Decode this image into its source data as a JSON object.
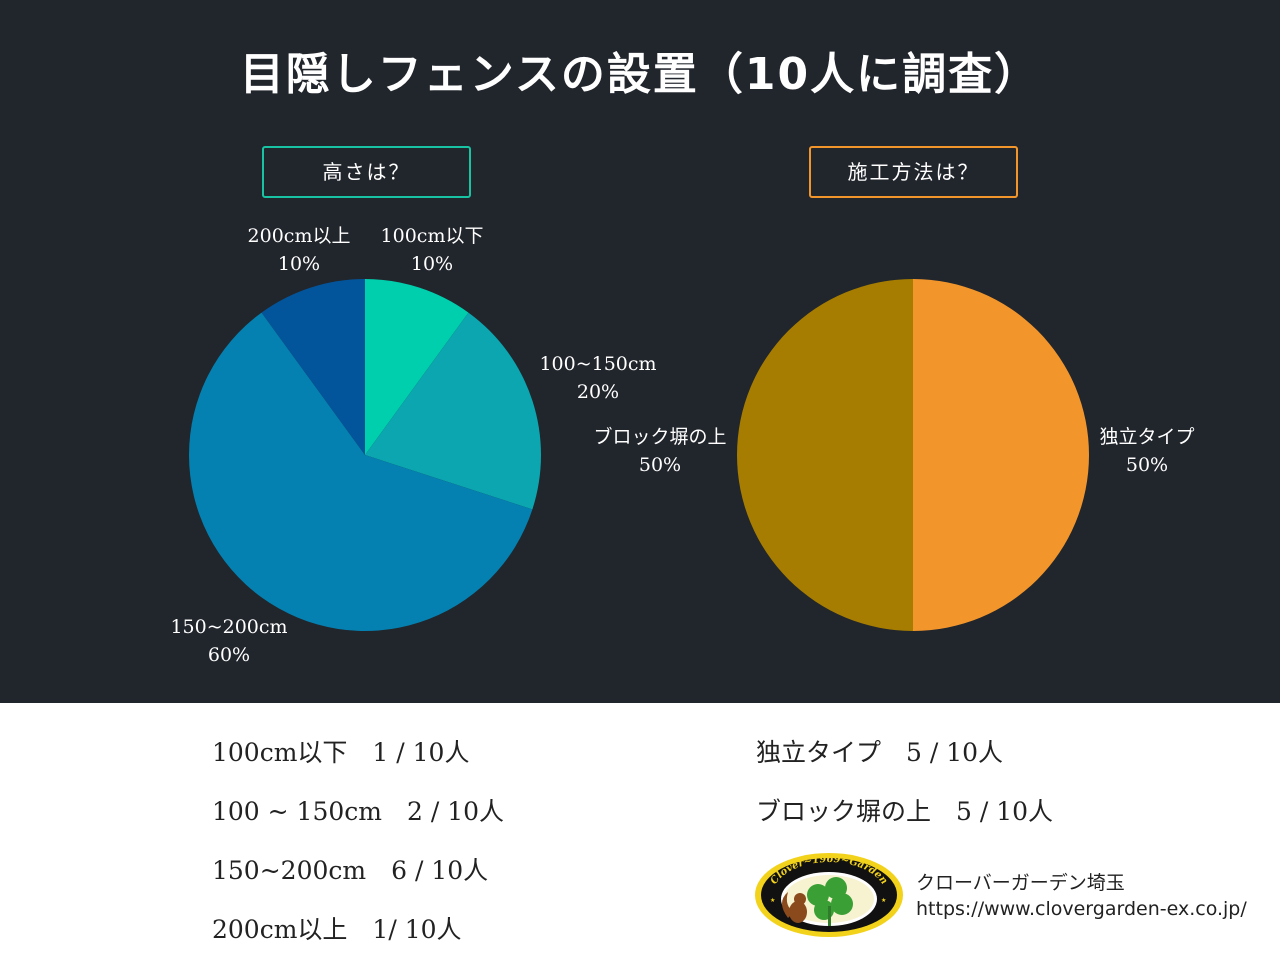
{
  "title": "目隠しフェンスの設置（10人に調査）",
  "question_height": "高さは？",
  "question_method": "施工方法は？",
  "chart_data": [
    {
      "type": "pie",
      "title": "高さは？",
      "slices": [
        {
          "label": "100cm以下",
          "value": 10,
          "value_label": "10%",
          "color": "#00cfad"
        },
        {
          "label": "100~150cm",
          "value": 20,
          "value_label": "20%",
          "color": "#0ba6b0"
        },
        {
          "label": "150~200cm",
          "value": 60,
          "value_label": "60%",
          "color": "#0481b0"
        },
        {
          "label": "200cm以上",
          "value": 10,
          "value_label": "10%",
          "color": "#03559b"
        }
      ]
    },
    {
      "type": "pie",
      "title": "施工方法は？",
      "slices": [
        {
          "label": "独立タイプ",
          "value": 50,
          "value_label": "50%",
          "color": "#f2962c"
        },
        {
          "label": "ブロック塀の上",
          "value": 50,
          "value_label": "50%",
          "color": "#a67d00"
        }
      ]
    }
  ],
  "stats_height": [
    "100cm以下　1 / 10人",
    "100 ~ 150cm　2 / 10人",
    "150~200cm　6 / 10人",
    "200cm以上　1/ 10人"
  ],
  "stats_method": [
    "独立タイプ　5 / 10人",
    "ブロック塀の上　5 / 10人"
  ],
  "logo": {
    "arc_text": "Clover~1969~Garden"
  },
  "brand_name": "クローバーガーデン埼玉",
  "brand_url": "https://www.clovergarden-ex.co.jp/"
}
